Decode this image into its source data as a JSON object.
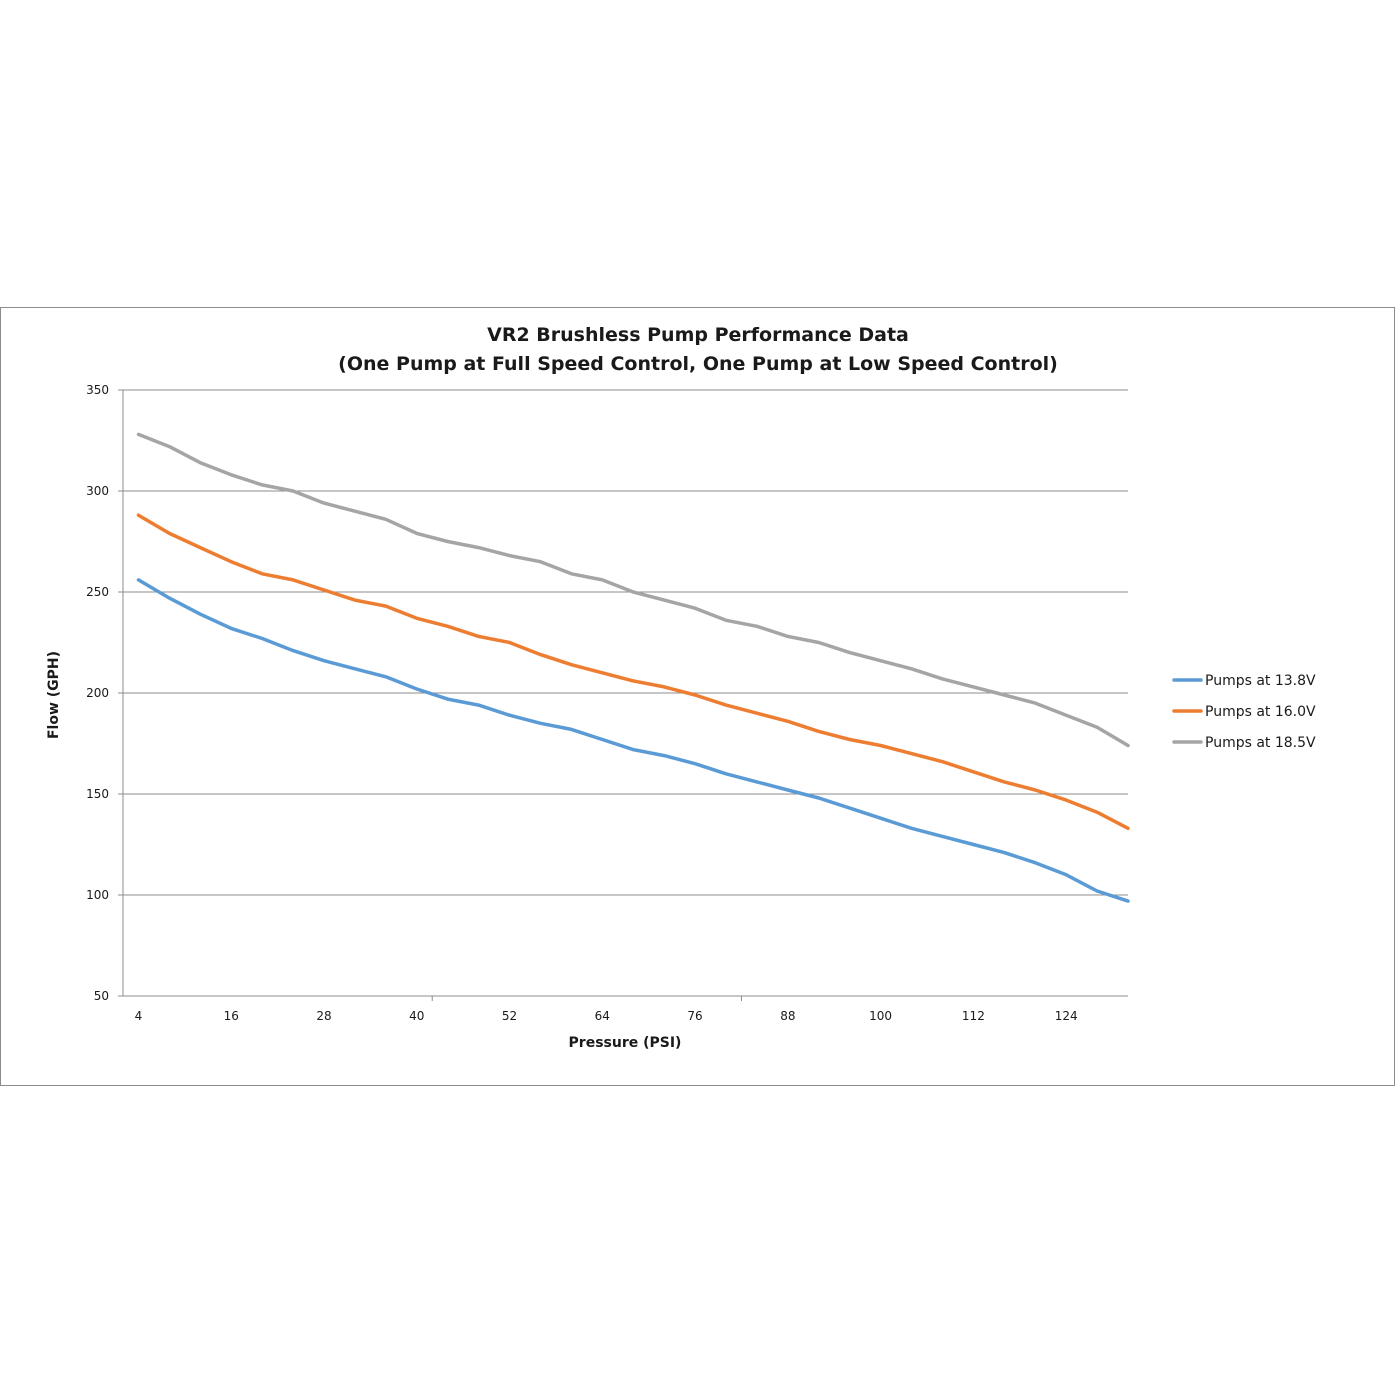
{
  "chart_data": {
    "type": "line",
    "title": "VR2 Brushless Pump Performance Data",
    "subtitle": "(One Pump at Full Speed Control, One Pump at Low Speed Control)",
    "xlabel": "Pressure (PSI)",
    "ylabel": "Flow (GPH)",
    "ylim": [
      50,
      350
    ],
    "yticks": [
      50,
      100,
      150,
      200,
      250,
      300,
      350
    ],
    "xlim": [
      2,
      132
    ],
    "xticks": [
      "4",
      "16",
      "28",
      "40",
      "52",
      "64",
      "76",
      "88",
      "100",
      "112",
      "124"
    ],
    "grid": "horizontal",
    "legend_position": "right",
    "x": [
      4,
      8,
      12,
      16,
      20,
      24,
      28,
      32,
      36,
      40,
      44,
      48,
      52,
      56,
      60,
      64,
      68,
      72,
      76,
      80,
      84,
      88,
      92,
      96,
      100,
      104,
      108,
      112,
      116,
      120,
      124,
      128,
      132
    ],
    "series": [
      {
        "name": "Pumps at 13.8V",
        "color": "#5b9bd5",
        "values": [
          256,
          247,
          239,
          232,
          227,
          221,
          216,
          212,
          208,
          202,
          197,
          194,
          189,
          185,
          182,
          177,
          172,
          169,
          165,
          160,
          156,
          152,
          148,
          143,
          138,
          133,
          129,
          125,
          121,
          116,
          110,
          102,
          97
        ]
      },
      {
        "name": "Pumps at 16.0V",
        "color": "#ed7d31",
        "values": [
          288,
          279,
          272,
          265,
          259,
          256,
          251,
          246,
          243,
          237,
          233,
          228,
          225,
          219,
          214,
          210,
          206,
          203,
          199,
          194,
          190,
          186,
          181,
          177,
          174,
          170,
          166,
          161,
          156,
          152,
          147,
          141,
          133
        ]
      },
      {
        "name": "Pumps at 18.5V",
        "color": "#a5a5a5",
        "values": [
          328,
          322,
          314,
          308,
          303,
          300,
          294,
          290,
          286,
          279,
          275,
          272,
          268,
          265,
          259,
          256,
          250,
          246,
          242,
          236,
          233,
          228,
          225,
          220,
          216,
          212,
          207,
          203,
          199,
          195,
          189,
          183,
          174
        ]
      }
    ]
  }
}
